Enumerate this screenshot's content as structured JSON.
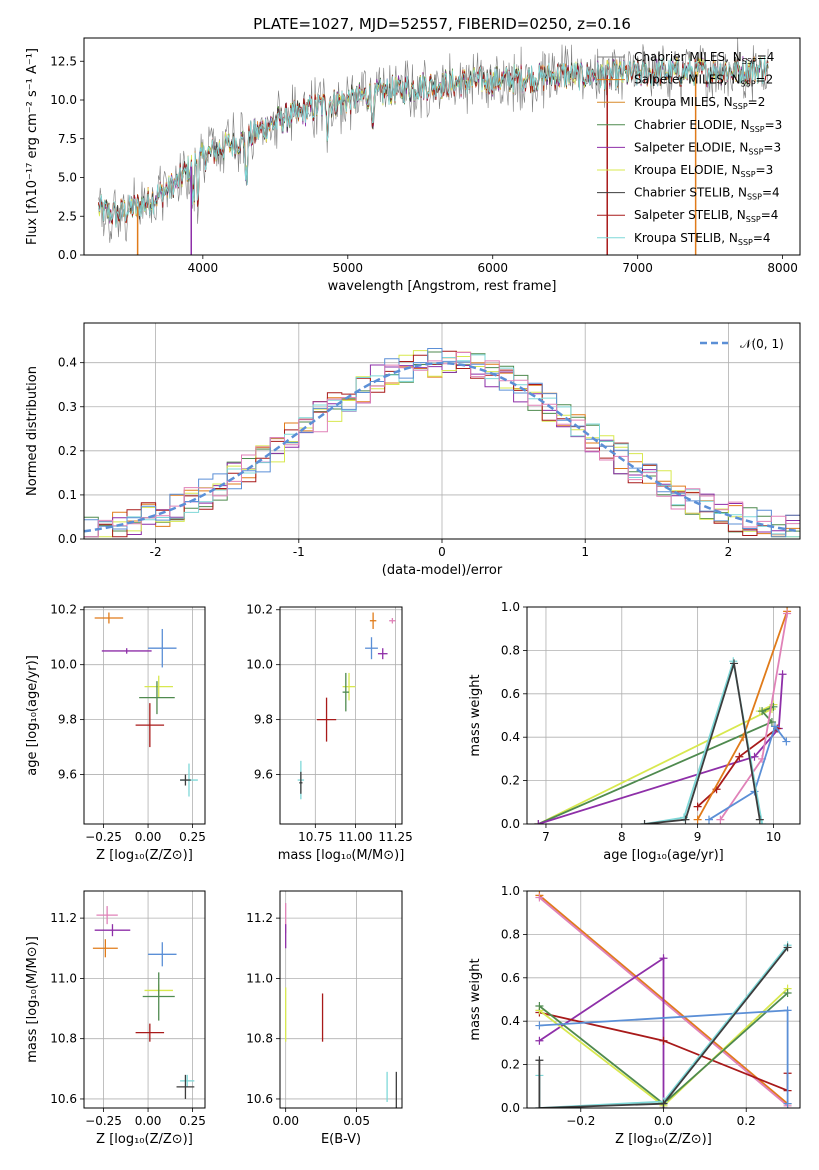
{
  "figure": {
    "title": "PLATE=1027, MJD=52557, FIBERID=0250, z=0.16"
  },
  "model_colors": [
    "#7f7f7f",
    "#e07b1a",
    "#d88a2a",
    "#4f8a4f",
    "#8e2fa8",
    "#d8e84f",
    "#3d3d3d",
    "#a81a1a",
    "#7fd8d8"
  ],
  "chart_data": [
    {
      "id": "spectrum",
      "type": "line",
      "xlabel": "wavelength [Angstrom, rest frame]",
      "ylabel": "Flux [fλ10⁻¹⁷ erg cm⁻² s⁻¹ A⁻¹]",
      "xlim": [
        3180,
        8120
      ],
      "ylim": [
        0,
        14
      ],
      "xticks": [
        4000,
        5000,
        6000,
        7000,
        8000
      ],
      "yticks": [
        0.0,
        2.5,
        5.0,
        7.5,
        10.0,
        12.5
      ],
      "legend": "top-right",
      "series": [
        {
          "name": "Chabrier MILES, N",
          "sub": "SSP",
          "suffix": "=4",
          "color": "#7f7f7f"
        },
        {
          "name": "Salpeter MILES, N",
          "sub": "SSP",
          "suffix": "=2",
          "color": "#e07b1a"
        },
        {
          "name": "Kroupa MILES, N",
          "sub": "SSP",
          "suffix": "=2",
          "color": "#d88a2a"
        },
        {
          "name": "Chabrier ELODIE, N",
          "sub": "SSP",
          "suffix": "=3",
          "color": "#4f8a4f"
        },
        {
          "name": "Salpeter ELODIE, N",
          "sub": "SSP",
          "suffix": "=3",
          "color": "#8e2fa8"
        },
        {
          "name": "Kroupa ELODIE, N",
          "sub": "SSP",
          "suffix": "=3",
          "color": "#d8e84f"
        },
        {
          "name": "Chabrier STELIB, N",
          "sub": "SSP",
          "suffix": "=4",
          "color": "#3d3d3d"
        },
        {
          "name": "Salpeter STELIB, N",
          "sub": "SSP",
          "suffix": "=4",
          "color": "#a81a1a"
        },
        {
          "name": "Kroupa STELIB, N",
          "sub": "SSP",
          "suffix": "=4",
          "color": "#7fd8d8"
        }
      ],
      "continuum": {
        "x": [
          3280,
          3400,
          3600,
          3800,
          3950,
          4100,
          4300,
          4500,
          4800,
          5000,
          5300,
          5600,
          5900,
          6200,
          6500,
          6800,
          7000,
          7300,
          7600,
          7900
        ],
        "y": [
          3.0,
          2.6,
          3.3,
          4.5,
          6.0,
          6.8,
          7.5,
          8.6,
          9.6,
          10.0,
          10.6,
          11.0,
          11.2,
          11.4,
          11.6,
          11.6,
          11.7,
          11.8,
          11.9,
          12.0
        ]
      },
      "dips": [
        {
          "x": 3550,
          "y": 0
        },
        {
          "x": 3920,
          "y": 0
        },
        {
          "x": 6790,
          "y": 0
        },
        {
          "x": 7400,
          "y": 0
        }
      ]
    },
    {
      "id": "residuals",
      "type": "histogram",
      "xlabel": "(data-model)/error",
      "ylabel": "Normed distribution",
      "xlim": [
        -2.5,
        2.5
      ],
      "ylim": [
        0,
        0.49
      ],
      "xticks": [
        -2,
        -1,
        0,
        1,
        2
      ],
      "yticks": [
        0.0,
        0.1,
        0.2,
        0.3,
        0.4
      ],
      "bin_width": 0.1,
      "legend_label": "𝒩(0, 1)",
      "legend": "top-right",
      "curve_color": "#5b8fd6",
      "series_colors": [
        "#e07b1a",
        "#4f8a4f",
        "#8e2fa8",
        "#d8e84f",
        "#a81a1a",
        "#7fd8d8",
        "#5b8fd6",
        "#e082b8"
      ]
    },
    {
      "id": "age-vs-z",
      "type": "scatter",
      "xlabel": "Z [log₁₀(Z/Z⊙)]",
      "ylabel": "age  [log₁₀(age/yr)]",
      "xlim": [
        -0.36,
        0.32
      ],
      "ylim": [
        9.42,
        10.21
      ],
      "xticks": [
        -0.25,
        0.0,
        0.25
      ],
      "xticklabels": [
        "−0.25",
        "0.00",
        "0.25"
      ],
      "yticks": [
        9.6,
        9.8,
        10.0,
        10.2
      ],
      "points": [
        {
          "x": -0.22,
          "y": 10.17,
          "xerr": 0.08,
          "yerr": 0.02,
          "color": "#e07b1a"
        },
        {
          "x": -0.12,
          "y": 10.05,
          "xerr": 0.14,
          "yerr": 0.01,
          "color": "#8e2fa8"
        },
        {
          "x": 0.08,
          "y": 10.06,
          "xerr": 0.08,
          "yerr": 0.07,
          "color": "#5b8fd6"
        },
        {
          "x": 0.06,
          "y": 9.92,
          "xerr": 0.08,
          "yerr": 0.04,
          "color": "#d8e84f"
        },
        {
          "x": 0.05,
          "y": 9.88,
          "xerr": 0.1,
          "yerr": 0.06,
          "color": "#4f8a4f"
        },
        {
          "x": 0.01,
          "y": 9.78,
          "xerr": 0.08,
          "yerr": 0.08,
          "color": "#a81a1a"
        },
        {
          "x": 0.23,
          "y": 9.58,
          "xerr": 0.05,
          "yerr": 0.06,
          "color": "#7fd8d8"
        },
        {
          "x": 0.21,
          "y": 9.58,
          "xerr": 0.03,
          "yerr": 0.02,
          "color": "#3d3d3d"
        }
      ]
    },
    {
      "id": "age-vs-mass",
      "type": "scatter",
      "xlabel": "mass [log₁₀(M/M⊙)]",
      "ylabel": "",
      "xlim": [
        10.53,
        11.29
      ],
      "ylim": [
        9.42,
        10.21
      ],
      "xticks": [
        10.75,
        11.0,
        11.25
      ],
      "xticklabels": [
        "10.75",
        "11.00",
        "11.25"
      ],
      "yticks": [
        9.6,
        9.8,
        10.0,
        10.2
      ],
      "points": [
        {
          "x": 11.11,
          "y": 10.16,
          "xerr": 0.02,
          "yerr": 0.03,
          "color": "#e07b1a"
        },
        {
          "x": 11.23,
          "y": 10.16,
          "xerr": 0.02,
          "yerr": 0.01,
          "color": "#e082b8"
        },
        {
          "x": 11.17,
          "y": 10.04,
          "xerr": 0.03,
          "yerr": 0.02,
          "color": "#8e2fa8"
        },
        {
          "x": 11.1,
          "y": 10.06,
          "xerr": 0.04,
          "yerr": 0.04,
          "color": "#5b8fd6"
        },
        {
          "x": 10.96,
          "y": 9.92,
          "xerr": 0.04,
          "yerr": 0.05,
          "color": "#d8e84f"
        },
        {
          "x": 10.94,
          "y": 9.9,
          "xerr": 0.02,
          "yerr": 0.07,
          "color": "#4f8a4f"
        },
        {
          "x": 10.82,
          "y": 9.8,
          "xerr": 0.06,
          "yerr": 0.08,
          "color": "#a81a1a"
        },
        {
          "x": 10.66,
          "y": 9.58,
          "xerr": 0.02,
          "yerr": 0.07,
          "color": "#7fd8d8"
        },
        {
          "x": 10.66,
          "y": 9.57,
          "xerr": 0.01,
          "yerr": 0.04,
          "color": "#3d3d3d"
        }
      ]
    },
    {
      "id": "mass-weight-vs-age",
      "type": "line",
      "xlabel": "age  [log₁₀(age/yr)]",
      "ylabel": "mass weight",
      "xlim": [
        6.75,
        10.35
      ],
      "ylim": [
        0,
        1.0
      ],
      "xticks": [
        7,
        8,
        9,
        10
      ],
      "yticks": [
        0.0,
        0.2,
        0.4,
        0.6,
        0.8,
        1.0
      ],
      "yticklabels": [
        "0.0",
        "0.2",
        "0.4",
        "0.6",
        "0.8",
        "1.0"
      ],
      "series": [
        {
          "color": "#d8e84f",
          "x": [
            6.9,
            9.98,
            9.82,
            10.0
          ],
          "y": [
            0.0,
            0.53,
            0.52,
            0.55
          ]
        },
        {
          "color": "#4f8a4f",
          "x": [
            6.9,
            9.98,
            9.85,
            10.0
          ],
          "y": [
            0.0,
            0.47,
            0.52,
            0.54
          ]
        },
        {
          "color": "#8e2fa8",
          "x": [
            6.9,
            9.75,
            10.07,
            10.12
          ],
          "y": [
            0.0,
            0.31,
            0.44,
            0.69
          ]
        },
        {
          "color": "#a81a1a",
          "x": [
            9.0,
            9.25,
            9.55,
            10.05
          ],
          "y": [
            0.08,
            0.16,
            0.31,
            0.44
          ]
        },
        {
          "color": "#e07b1a",
          "x": [
            9.0,
            9.6,
            10.18
          ],
          "y": [
            0.02,
            0.4,
            0.98
          ]
        },
        {
          "color": "#e082b8",
          "x": [
            9.3,
            9.85,
            10.18
          ],
          "y": [
            0.02,
            0.3,
            0.97
          ]
        },
        {
          "color": "#5b8fd6",
          "x": [
            9.15,
            9.75,
            10.02,
            10.17
          ],
          "y": [
            0.02,
            0.15,
            0.45,
            0.38
          ]
        },
        {
          "color": "#7fd8d8",
          "x": [
            8.3,
            8.82,
            9.47,
            9.85
          ],
          "y": [
            0.0,
            0.03,
            0.75,
            0.0
          ]
        },
        {
          "color": "#3d3d3d",
          "x": [
            8.3,
            8.84,
            9.48,
            9.82
          ],
          "y": [
            0.0,
            0.02,
            0.74,
            0.02
          ]
        }
      ]
    },
    {
      "id": "mass-vs-z",
      "type": "scatter",
      "xlabel": "Z [log₁₀(Z/Z⊙)]",
      "ylabel": "mass [log₁₀(M/M⊙)]",
      "xlim": [
        -0.36,
        0.32
      ],
      "ylim": [
        10.57,
        11.29
      ],
      "xticks": [
        -0.25,
        0.0,
        0.25
      ],
      "xticklabels": [
        "−0.25",
        "0.00",
        "0.25"
      ],
      "yticks": [
        10.6,
        10.8,
        11.0,
        11.2
      ],
      "points": [
        {
          "x": -0.23,
          "y": 11.21,
          "xerr": 0.06,
          "yerr": 0.03,
          "color": "#e082b8"
        },
        {
          "x": -0.2,
          "y": 11.16,
          "xerr": 0.1,
          "yerr": 0.02,
          "color": "#8e2fa8"
        },
        {
          "x": -0.24,
          "y": 11.1,
          "xerr": 0.07,
          "yerr": 0.03,
          "color": "#e07b1a"
        },
        {
          "x": 0.08,
          "y": 11.08,
          "xerr": 0.08,
          "yerr": 0.04,
          "color": "#5b8fd6"
        },
        {
          "x": 0.06,
          "y": 10.96,
          "xerr": 0.08,
          "yerr": 0.02,
          "color": "#d8e84f"
        },
        {
          "x": 0.06,
          "y": 10.94,
          "xerr": 0.09,
          "yerr": 0.08,
          "color": "#4f8a4f"
        },
        {
          "x": 0.01,
          "y": 10.82,
          "xerr": 0.08,
          "yerr": 0.03,
          "color": "#a81a1a"
        },
        {
          "x": 0.22,
          "y": 10.66,
          "xerr": 0.04,
          "yerr": 0.02,
          "color": "#7fd8d8"
        },
        {
          "x": 0.21,
          "y": 10.64,
          "xerr": 0.05,
          "yerr": 0.04,
          "color": "#3d3d3d"
        }
      ]
    },
    {
      "id": "mass-vs-ebv",
      "type": "scatter",
      "xlabel": "E(B-V)",
      "ylabel": "",
      "xlim": [
        -0.004,
        0.082
      ],
      "ylim": [
        10.57,
        11.29
      ],
      "xticks": [
        0.0,
        0.05
      ],
      "xticklabels": [
        "0.00",
        "0.05"
      ],
      "yticks": [
        10.6,
        10.8,
        11.0,
        11.2
      ],
      "points": [
        {
          "x": 0.0,
          "y": 11.2,
          "xerr": 0.0,
          "yerr": 0.05,
          "color": "#e082b8"
        },
        {
          "x": 0.0,
          "y": 11.14,
          "xerr": 0.0,
          "yerr": 0.04,
          "color": "#8e2fa8"
        },
        {
          "x": 0.0,
          "y": 10.88,
          "xerr": 0.0,
          "yerr": 0.09,
          "color": "#d8e84f"
        },
        {
          "x": 0.026,
          "y": 10.87,
          "xerr": 0.0,
          "yerr": 0.08,
          "color": "#a81a1a"
        },
        {
          "x": 0.0715,
          "y": 10.64,
          "xerr": 0.0,
          "yerr": 0.05,
          "color": "#7fd8d8"
        },
        {
          "x": 0.078,
          "y": 10.63,
          "xerr": 0.0,
          "yerr": 0.06,
          "color": "#3d3d3d"
        }
      ]
    },
    {
      "id": "mass-weight-vs-z",
      "type": "line",
      "xlabel": "Z [log₁₀(Z/Z⊙)]",
      "ylabel": "mass weight",
      "xlim": [
        -0.33,
        0.33
      ],
      "ylim": [
        0,
        1.0
      ],
      "xticks": [
        -0.2,
        0.0,
        0.2
      ],
      "xticklabels": [
        "−0.2",
        "0.0",
        "0.2"
      ],
      "yticks": [
        0.0,
        0.2,
        0.4,
        0.6,
        0.8,
        1.0
      ],
      "yticklabels": [
        "0.0",
        "0.2",
        "0.4",
        "0.6",
        "0.8",
        "1.0"
      ],
      "series": [
        {
          "color": "#e07b1a",
          "x": [
            -0.3,
            0.3
          ],
          "y": [
            0.98,
            0.02
          ]
        },
        {
          "color": "#e082b8",
          "x": [
            -0.3,
            0.3
          ],
          "y": [
            0.97,
            0.01
          ]
        },
        {
          "color": "#8e2fa8",
          "x": [
            -0.3,
            0.0,
            0.0
          ],
          "y": [
            0.31,
            0.69,
            0.0
          ]
        },
        {
          "color": "#a81a1a",
          "x": [
            -0.3,
            0.0,
            0.3,
            0.3
          ],
          "y": [
            0.44,
            0.31,
            0.08,
            0.16
          ]
        },
        {
          "color": "#d8e84f",
          "x": [
            -0.3,
            0.0,
            0.3
          ],
          "y": [
            0.45,
            0.01,
            0.55
          ]
        },
        {
          "color": "#4f8a4f",
          "x": [
            -0.3,
            0.0,
            0.3
          ],
          "y": [
            0.47,
            0.02,
            0.53
          ]
        },
        {
          "color": "#5b8fd6",
          "x": [
            -0.3,
            0.3,
            0.3
          ],
          "y": [
            0.38,
            0.45,
            0.02
          ]
        },
        {
          "color": "#7fd8d8",
          "x": [
            -0.3,
            -0.3,
            0.0,
            0.3
          ],
          "y": [
            0.15,
            0.0,
            0.03,
            0.75
          ]
        },
        {
          "color": "#3d3d3d",
          "x": [
            -0.3,
            -0.3,
            0.0,
            0.3
          ],
          "y": [
            0.22,
            0.0,
            0.02,
            0.74
          ]
        }
      ]
    }
  ]
}
